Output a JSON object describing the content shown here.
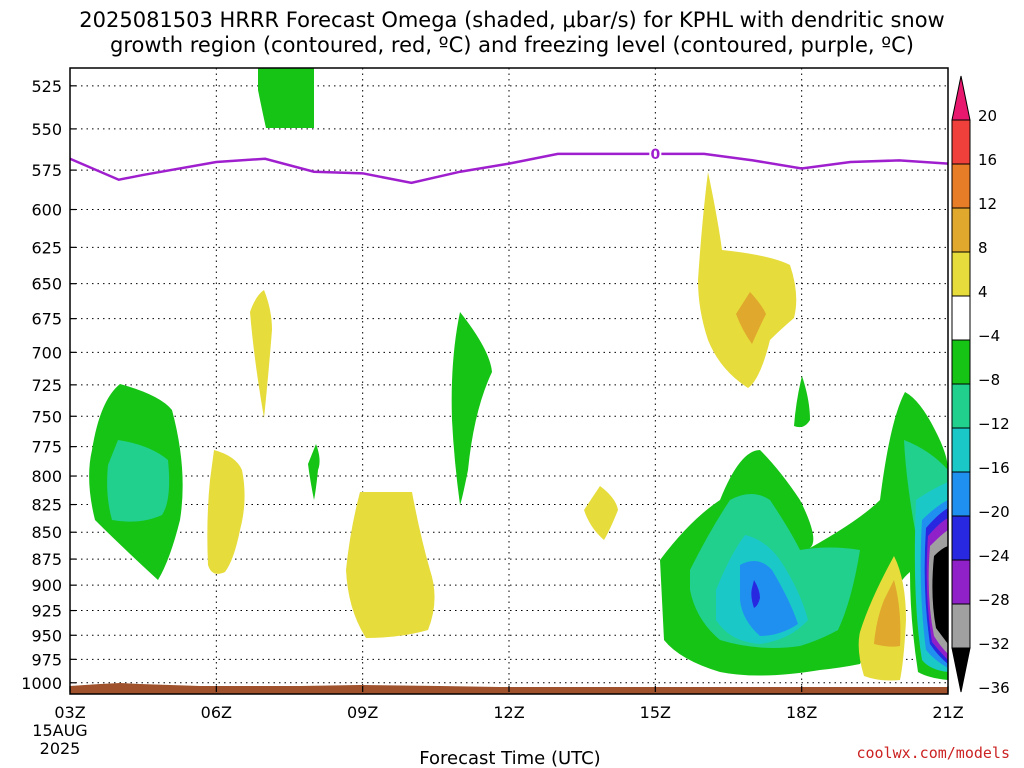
{
  "chart_data": {
    "type": "contour",
    "title_line1": "2025081503 HRRR Forecast Omega (shaded, μbar/s) for KPHL with dendritic snow",
    "title_line2": "growth region (contoured, red, ºC) and freezing level (contoured, purple, ºC)",
    "xlabel": "Forecast Time (UTC)",
    "x_ticks": [
      "03Z",
      "06Z",
      "09Z",
      "12Z",
      "15Z",
      "18Z",
      "21Z"
    ],
    "x_date_line1": "15AUG",
    "x_date_line2": "2025",
    "xlim_hours_utc": [
      3,
      21
    ],
    "y_ticks": [
      525,
      550,
      575,
      600,
      625,
      650,
      675,
      700,
      725,
      750,
      775,
      800,
      825,
      850,
      875,
      900,
      925,
      950,
      975,
      1000
    ],
    "ylim_mb": [
      515,
      1010
    ],
    "y_scale": "log-pressure (inverted)",
    "grid": true,
    "colorbar": {
      "levels": [
        20,
        16,
        12,
        8,
        4,
        -4,
        -8,
        -12,
        -16,
        -20,
        -24,
        -28,
        -32,
        -36
      ],
      "colors": [
        "#e8186e",
        "#f0403c",
        "#e87d28",
        "#e0a82c",
        "#e6dc3c",
        "#ffffff",
        "#16c416",
        "#20d08c",
        "#1ac8c8",
        "#2090f0",
        "#2828e0",
        "#9020c8",
        "#a0a0a0",
        "#000000"
      ]
    },
    "freezing_level": {
      "label": "0",
      "color": "#9f1fcf",
      "hours": [
        3,
        4,
        4.5,
        6,
        7,
        8,
        9,
        10,
        11,
        12,
        13,
        14,
        15,
        16,
        17,
        18,
        19,
        20,
        21
      ],
      "pressure_mb": [
        568,
        581,
        578,
        570,
        568,
        576,
        577,
        583,
        576,
        571,
        565,
        565,
        565,
        565,
        569,
        574,
        570,
        569,
        571
      ]
    },
    "omega_regions": [
      {
        "name": "upper-ascent",
        "value_class": "-4 to -8",
        "color": "#16c416"
      },
      {
        "name": "mid-subsidence",
        "value_class": "4 to 8",
        "color": "#e6dc3c"
      },
      {
        "name": "low-level-ascent",
        "value_class": "-8 to -32",
        "color": "#20d08c"
      },
      {
        "name": "low-level-subsidence",
        "value_class": "4 to 12",
        "color": "#e0a82c"
      }
    ],
    "terrain_color": "#a0522d",
    "credit": "coolwx.com/models"
  }
}
